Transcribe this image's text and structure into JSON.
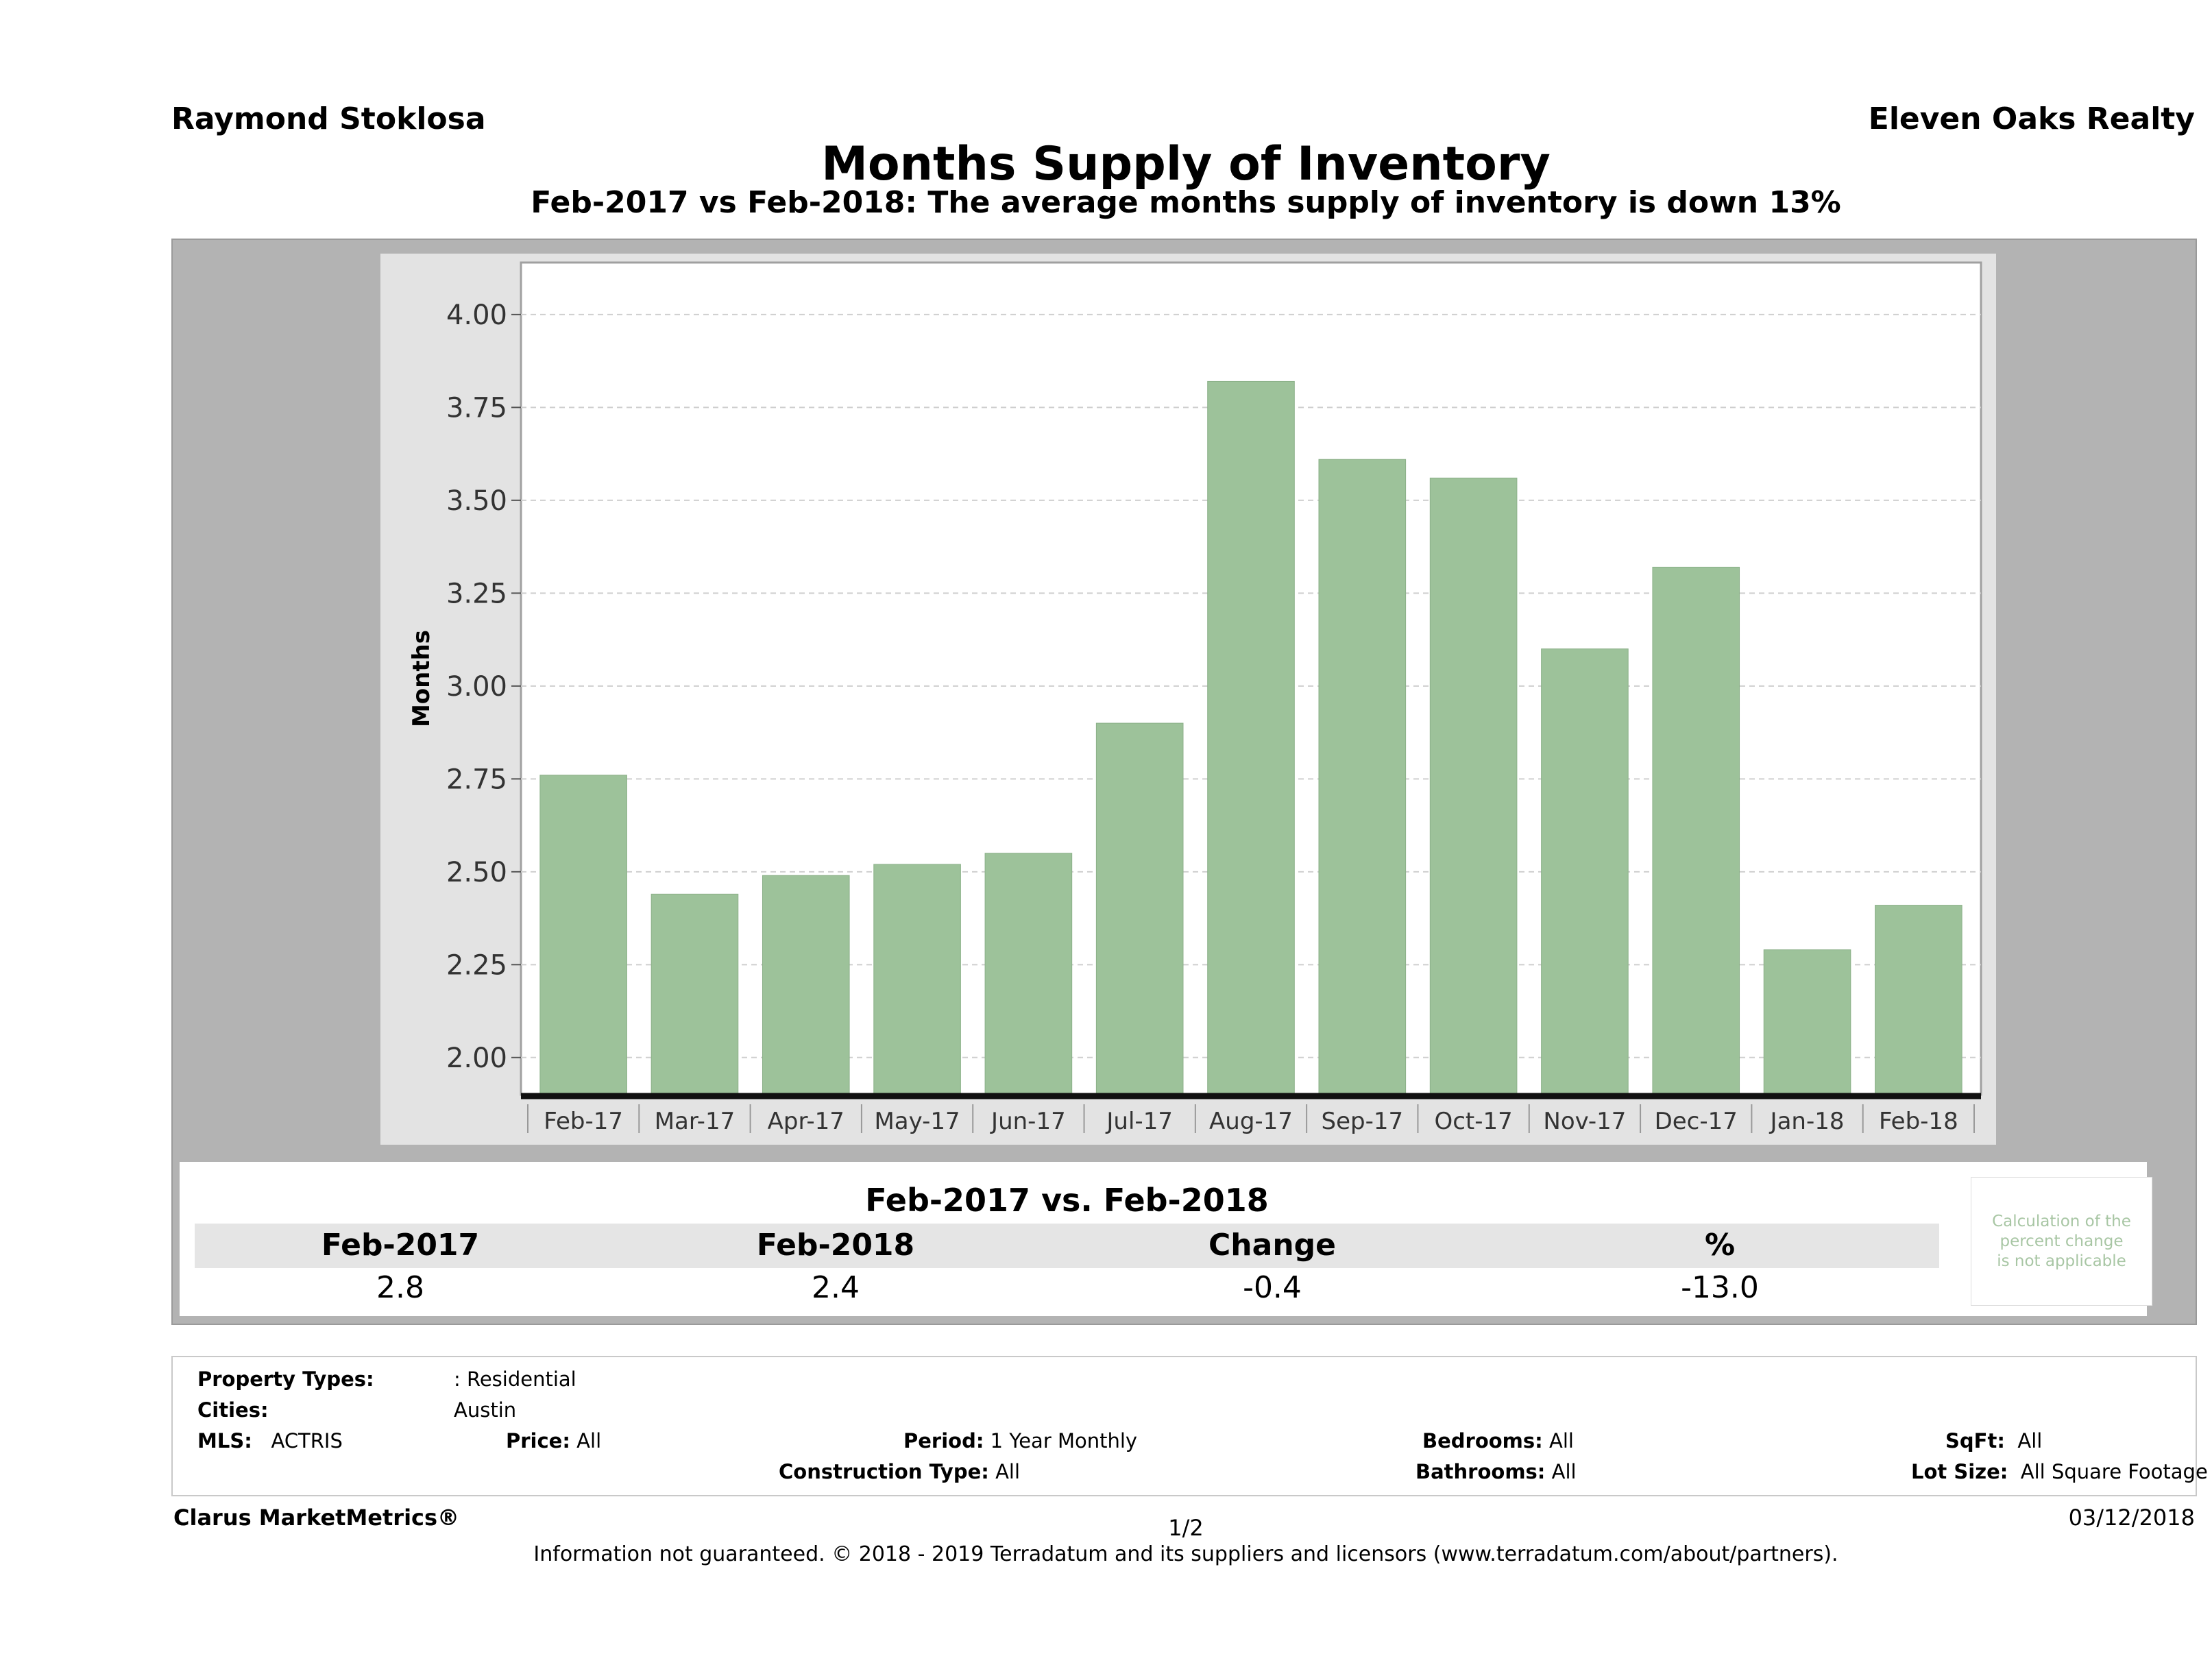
{
  "header": {
    "agent": "Raymond Stoklosa",
    "company": "Eleven Oaks Realty",
    "title": "Months Supply of Inventory",
    "subtitle": "Feb-2017 vs Feb-2018: The average months supply of inventory is down 13%"
  },
  "chart_data": {
    "type": "bar",
    "categories": [
      "Feb-17",
      "Mar-17",
      "Apr-17",
      "May-17",
      "Jun-17",
      "Jul-17",
      "Aug-17",
      "Sep-17",
      "Oct-17",
      "Nov-17",
      "Dec-17",
      "Jan-18",
      "Feb-18"
    ],
    "values": [
      2.76,
      2.44,
      2.49,
      2.52,
      2.55,
      2.9,
      3.82,
      3.61,
      3.56,
      3.1,
      3.32,
      2.29,
      2.41
    ],
    "ylabel": "Months",
    "xlabel": "",
    "ylim": [
      1.9,
      4.14
    ],
    "yticks": [
      "2.00",
      "2.25",
      "2.50",
      "2.75",
      "3.00",
      "3.25",
      "3.50",
      "3.75",
      "4.00"
    ],
    "grid": true,
    "bar_color": "#9dc29a"
  },
  "summary": {
    "heading": "Feb-2017 vs. Feb-2018",
    "columns": [
      "Feb-2017",
      "Feb-2018",
      "Change",
      "%"
    ],
    "values": [
      "2.8",
      "2.4",
      "-0.4",
      "-13.0"
    ],
    "note_lines": [
      "Calculation of the",
      "percent change",
      "is not applicable"
    ]
  },
  "filters": {
    "property_types_label": "Property Types:",
    "property_types_value": ": Residential",
    "cities_label": "Cities:",
    "cities_value": "Austin",
    "mls_label": "MLS:",
    "mls_value": "ACTRIS",
    "price_label": "Price:",
    "price_value": "All",
    "period_label": "Period:",
    "period_value": "1 Year Monthly",
    "construction_label": "Construction Type:",
    "construction_value": "All",
    "bedrooms_label": "Bedrooms:",
    "bedrooms_value": "All",
    "bathrooms_label": "Bathrooms:",
    "bathrooms_value": "All",
    "sqft_label": "SqFt:",
    "sqft_value": "All",
    "lot_label": "Lot Size:",
    "lot_value": "All Square Footage"
  },
  "footer": {
    "brand": "Clarus MarketMetrics®",
    "page": "1/2",
    "date": "03/12/2018",
    "note": "Information not guaranteed. © 2018 - 2019 Terradatum and its suppliers and licensors (www.terradatum.com/about/partners)."
  }
}
